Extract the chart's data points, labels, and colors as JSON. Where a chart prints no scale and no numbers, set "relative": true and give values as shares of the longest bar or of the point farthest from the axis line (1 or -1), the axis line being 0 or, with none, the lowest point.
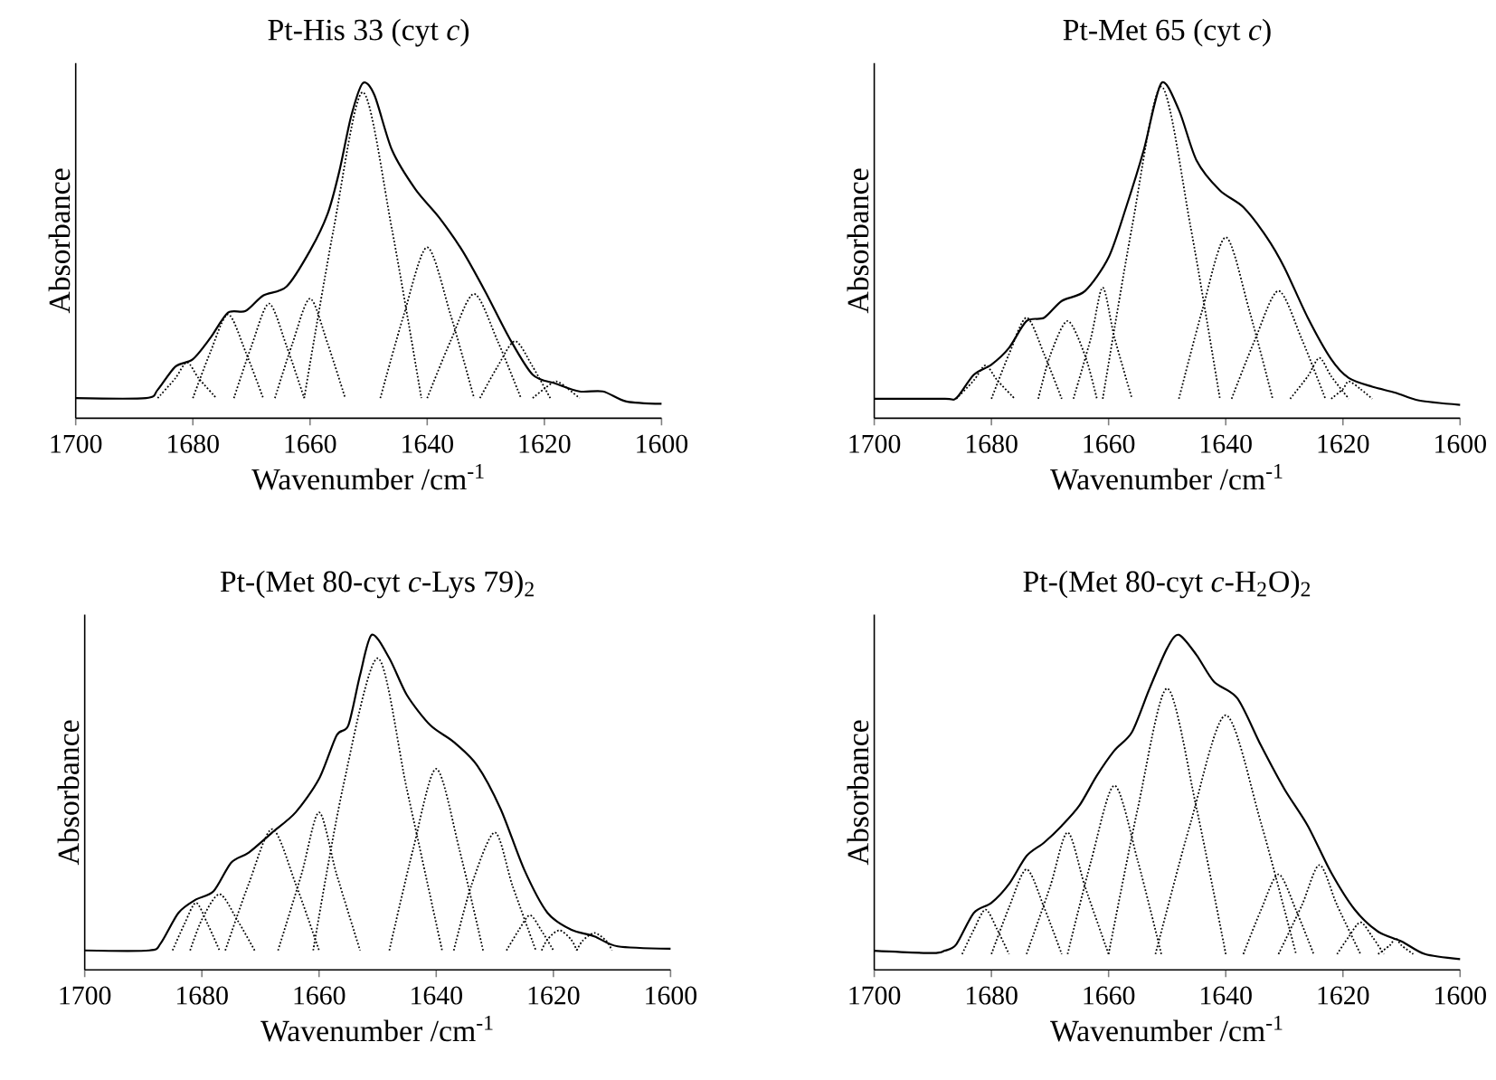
{
  "chart_data": [
    {
      "type": "line",
      "title": "Pt-His 33 (cyt *c*)",
      "xlabel": "Wavenumber /cm$^{-1}$",
      "ylabel": "Absorbance",
      "relative": true,
      "xlim": [
        1700,
        1600
      ],
      "xticks": [
        1700,
        1680,
        1660,
        1640,
        1620,
        1600
      ],
      "series": [
        {
          "color": "#000000",
          "line_style": "solid",
          "x": [
            1700,
            1688,
            1686,
            1683,
            1680,
            1677,
            1674,
            1671,
            1668,
            1664,
            1660,
            1657,
            1655,
            1653,
            1651,
            1649,
            1646,
            1642,
            1638,
            1634,
            1630,
            1626,
            1622,
            1618,
            1614,
            1610,
            1606,
            1600
          ],
          "values": [
            0.06,
            0.06,
            0.085,
            0.154,
            0.176,
            0.24,
            0.315,
            0.32,
            0.366,
            0.393,
            0.5,
            0.61,
            0.737,
            0.9,
            1.0,
            0.964,
            0.8,
            0.683,
            0.6,
            0.5,
            0.375,
            0.24,
            0.13,
            0.103,
            0.08,
            0.08,
            0.05,
            0.043
          ]
        },
        {
          "color": "#000000",
          "line_style": "dotted",
          "x": [
            1686,
            1683,
            1681,
            1679,
            1676
          ],
          "values": [
            0.06,
            0.119,
            0.167,
            0.119,
            0.06
          ]
        },
        {
          "color": "#000000",
          "line_style": "dotted",
          "x": [
            1680,
            1677,
            1674,
            1671,
            1668
          ],
          "values": [
            0.06,
            0.198,
            0.31,
            0.198,
            0.06
          ]
        },
        {
          "color": "#000000",
          "line_style": "dotted",
          "x": [
            1673,
            1670,
            1667,
            1664,
            1661
          ],
          "values": [
            0.06,
            0.215,
            0.342,
            0.215,
            0.06
          ]
        },
        {
          "color": "#000000",
          "line_style": "dotted",
          "x": [
            1666,
            1663,
            1660,
            1657,
            1654
          ],
          "values": [
            0.06,
            0.223,
            0.357,
            0.223,
            0.06
          ]
        },
        {
          "color": "#000000",
          "line_style": "dotted",
          "x": [
            1661,
            1656,
            1651,
            1646,
            1641
          ],
          "values": [
            0.06,
            0.562,
            0.973,
            0.562,
            0.06
          ]
        },
        {
          "color": "#000000",
          "line_style": "dotted",
          "x": [
            1648,
            1644,
            1640,
            1636,
            1632
          ],
          "values": [
            0.06,
            0.308,
            0.51,
            0.308,
            0.06
          ]
        },
        {
          "color": "#000000",
          "line_style": "dotted",
          "x": [
            1640,
            1636,
            1632,
            1628,
            1624
          ],
          "values": [
            0.06,
            0.231,
            0.371,
            0.231,
            0.06
          ]
        },
        {
          "color": "#000000",
          "line_style": "dotted",
          "x": [
            1631,
            1628,
            1625,
            1622,
            1619
          ],
          "values": [
            0.06,
            0.154,
            0.23,
            0.154,
            0.06
          ]
        },
        {
          "color": "#000000",
          "line_style": "dotted",
          "x": [
            1622,
            1620,
            1618,
            1616,
            1614
          ],
          "values": [
            0.06,
            0.088,
            0.11,
            0.088,
            0.06
          ]
        }
      ]
    },
    {
      "type": "line",
      "title": "Pt-Met 65 (cyt *c*)",
      "xlabel": "Wavenumber /cm$^{-1}$",
      "ylabel": "Absorbance",
      "relative": true,
      "xlim": [
        1700,
        1600
      ],
      "xticks": [
        1700,
        1680,
        1660,
        1640,
        1620,
        1600
      ],
      "series": [
        {
          "color": "#000000",
          "line_style": "solid",
          "x": [
            1700,
            1688,
            1686,
            1683,
            1680,
            1677,
            1674,
            1671,
            1668,
            1664,
            1660,
            1657,
            1654,
            1651,
            1648,
            1645,
            1641,
            1637,
            1633,
            1630,
            1626,
            1622,
            1619,
            1615,
            1611,
            1607,
            1600
          ],
          "values": [
            0.058,
            0.058,
            0.06,
            0.13,
            0.16,
            0.21,
            0.29,
            0.3,
            0.35,
            0.38,
            0.48,
            0.63,
            0.8,
            1.0,
            0.92,
            0.77,
            0.68,
            0.63,
            0.54,
            0.45,
            0.3,
            0.176,
            0.12,
            0.094,
            0.076,
            0.053,
            0.04
          ]
        },
        {
          "color": "#000000",
          "line_style": "dotted",
          "x": [
            1686,
            1683,
            1681,
            1679,
            1676
          ],
          "values": [
            0.058,
            0.113,
            0.158,
            0.113,
            0.058
          ]
        },
        {
          "color": "#000000",
          "line_style": "dotted",
          "x": [
            1680,
            1677,
            1674,
            1671,
            1668
          ],
          "values": [
            0.058,
            0.191,
            0.3,
            0.191,
            0.058
          ]
        },
        {
          "color": "#000000",
          "line_style": "dotted",
          "x": [
            1672,
            1670,
            1667,
            1664,
            1662
          ],
          "values": [
            0.058,
            0.186,
            0.29,
            0.186,
            0.058
          ]
        },
        {
          "color": "#000000",
          "line_style": "dotted",
          "x": [
            1666,
            1663,
            1661,
            1659,
            1656
          ],
          "values": [
            0.058,
            0.241,
            0.39,
            0.241,
            0.058
          ]
        },
        {
          "color": "#000000",
          "line_style": "dotted",
          "x": [
            1661,
            1656,
            1651,
            1646,
            1641
          ],
          "values": [
            0.058,
            0.571,
            0.99,
            0.571,
            0.058
          ]
        },
        {
          "color": "#000000",
          "line_style": "dotted",
          "x": [
            1648,
            1644,
            1640,
            1636,
            1632
          ],
          "values": [
            0.058,
            0.323,
            0.54,
            0.323,
            0.058
          ]
        },
        {
          "color": "#000000",
          "line_style": "dotted",
          "x": [
            1639,
            1635,
            1631,
            1627,
            1623
          ],
          "values": [
            0.058,
            0.235,
            0.38,
            0.235,
            0.058
          ]
        },
        {
          "color": "#000000",
          "line_style": "dotted",
          "x": [
            1629,
            1626,
            1624,
            1622,
            1619
          ],
          "values": [
            0.058,
            0.125,
            0.18,
            0.125,
            0.058
          ]
        },
        {
          "color": "#000000",
          "line_style": "dotted",
          "x": [
            1622,
            1620,
            1619,
            1617,
            1615
          ],
          "values": [
            0.058,
            0.087,
            0.11,
            0.087,
            0.058
          ]
        }
      ]
    },
    {
      "type": "line",
      "title": "Pt-(Met 80-cyt *c*-Lys 79)$_{2}$",
      "xlabel": "Wavenumber /cm$^{-1}$",
      "ylabel": "Absorbance",
      "relative": true,
      "xlim": [
        1700,
        1600
      ],
      "xticks": [
        1700,
        1680,
        1660,
        1640,
        1620,
        1600
      ],
      "series": [
        {
          "color": "#000000",
          "line_style": "solid",
          "x": [
            1700,
            1689,
            1687,
            1684,
            1681,
            1678,
            1675,
            1672,
            1668,
            1664,
            1660,
            1657,
            1655,
            1653,
            1651,
            1648,
            1645,
            1641,
            1637,
            1633,
            1629,
            1625,
            1621,
            1617,
            1613,
            1609,
            1600
          ],
          "values": [
            0.058,
            0.058,
            0.08,
            0.17,
            0.21,
            0.235,
            0.32,
            0.35,
            0.41,
            0.47,
            0.57,
            0.7,
            0.73,
            0.88,
            1.0,
            0.93,
            0.82,
            0.73,
            0.68,
            0.61,
            0.48,
            0.3,
            0.17,
            0.12,
            0.1,
            0.07,
            0.063
          ]
        },
        {
          "color": "#000000",
          "line_style": "dotted",
          "x": [
            1685,
            1683,
            1681,
            1679,
            1677
          ],
          "values": [
            0.058,
            0.136,
            0.2,
            0.136,
            0.058
          ]
        },
        {
          "color": "#000000",
          "line_style": "dotted",
          "x": [
            1682,
            1680,
            1677,
            1674,
            1671
          ],
          "values": [
            0.058,
            0.15,
            0.226,
            0.15,
            0.058
          ]
        },
        {
          "color": "#000000",
          "line_style": "dotted",
          "x": [
            1676,
            1672,
            1668,
            1664,
            1660
          ],
          "values": [
            0.058,
            0.257,
            0.42,
            0.257,
            0.058
          ]
        },
        {
          "color": "#000000",
          "line_style": "dotted",
          "x": [
            1667,
            1663,
            1660,
            1657,
            1653
          ],
          "values": [
            0.058,
            0.285,
            0.47,
            0.285,
            0.058
          ]
        },
        {
          "color": "#000000",
          "line_style": "dotted",
          "x": [
            1661,
            1656,
            1650,
            1645,
            1639
          ],
          "values": [
            0.058,
            0.538,
            0.93,
            0.538,
            0.058
          ]
        },
        {
          "color": "#000000",
          "line_style": "dotted",
          "x": [
            1648,
            1644,
            1640,
            1636,
            1632
          ],
          "values": [
            0.058,
            0.356,
            0.6,
            0.356,
            0.058
          ]
        },
        {
          "color": "#000000",
          "line_style": "dotted",
          "x": [
            1637,
            1634,
            1630,
            1627,
            1623
          ],
          "values": [
            0.058,
            0.252,
            0.41,
            0.252,
            0.058
          ]
        },
        {
          "color": "#000000",
          "line_style": "dotted",
          "x": [
            1628,
            1626,
            1624,
            1622,
            1620
          ],
          "values": [
            0.058,
            0.116,
            0.163,
            0.116,
            0.058
          ]
        },
        {
          "color": "#000000",
          "line_style": "dotted",
          "x": [
            1622,
            1621,
            1619,
            1617,
            1616
          ],
          "values": [
            0.058,
            0.091,
            0.118,
            0.091,
            0.058
          ]
        },
        {
          "color": "#000000",
          "line_style": "dotted",
          "x": [
            1616,
            1615,
            1613,
            1611,
            1610
          ],
          "values": [
            0.058,
            0.087,
            0.11,
            0.087,
            0.058
          ]
        }
      ]
    },
    {
      "type": "line",
      "title": "Pt-(Met 80-cyt *c*-H$_{2}$O)$_{2}$",
      "xlabel": "Wavenumber /cm$^{-1}$",
      "ylabel": "Absorbance",
      "relative": true,
      "xlim": [
        1700,
        1600
      ],
      "xticks": [
        1700,
        1680,
        1660,
        1640,
        1620,
        1600
      ],
      "series": [
        {
          "color": "#000000",
          "line_style": "solid",
          "x": [
            1700,
            1690,
            1688,
            1686,
            1683,
            1680,
            1677,
            1674,
            1671,
            1668,
            1665,
            1662,
            1659,
            1656,
            1653,
            1650,
            1648,
            1645,
            1642,
            1638,
            1634,
            1630,
            1626,
            1622,
            1618,
            1614,
            1610,
            1606,
            1600
          ],
          "values": [
            0.057,
            0.05,
            0.057,
            0.076,
            0.17,
            0.2,
            0.256,
            0.34,
            0.38,
            0.43,
            0.49,
            0.58,
            0.655,
            0.71,
            0.84,
            0.96,
            1.0,
            0.94,
            0.86,
            0.81,
            0.67,
            0.54,
            0.43,
            0.29,
            0.18,
            0.114,
            0.085,
            0.047,
            0.032
          ]
        },
        {
          "color": "#000000",
          "line_style": "dotted",
          "x": [
            1685,
            1683,
            1681,
            1679,
            1677
          ],
          "values": [
            0.047,
            0.12,
            0.18,
            0.12,
            0.047
          ]
        },
        {
          "color": "#000000",
          "line_style": "dotted",
          "x": [
            1680,
            1677,
            1674,
            1671,
            1668
          ],
          "values": [
            0.047,
            0.186,
            0.3,
            0.186,
            0.047
          ]
        },
        {
          "color": "#000000",
          "line_style": "dotted",
          "x": [
            1674,
            1670,
            1667,
            1664,
            1660
          ],
          "values": [
            0.047,
            0.247,
            0.41,
            0.247,
            0.047
          ]
        },
        {
          "color": "#000000",
          "line_style": "dotted",
          "x": [
            1667,
            1663,
            1659,
            1655,
            1651
          ],
          "values": [
            0.047,
            0.324,
            0.55,
            0.324,
            0.047
          ]
        },
        {
          "color": "#000000",
          "line_style": "dotted",
          "x": [
            1660,
            1655,
            1650,
            1645,
            1640
          ],
          "values": [
            0.047,
            0.483,
            0.84,
            0.483,
            0.047
          ]
        },
        {
          "color": "#000000",
          "line_style": "dotted",
          "x": [
            1652,
            1646,
            1640,
            1634,
            1628
          ],
          "values": [
            0.047,
            0.439,
            0.76,
            0.439,
            0.047
          ]
        },
        {
          "color": "#000000",
          "line_style": "dotted",
          "x": [
            1637,
            1634,
            1631,
            1628,
            1625
          ],
          "values": [
            0.047,
            0.178,
            0.285,
            0.178,
            0.047
          ]
        },
        {
          "color": "#000000",
          "line_style": "dotted",
          "x": [
            1631,
            1627,
            1624,
            1621,
            1617
          ],
          "values": [
            0.047,
            0.193,
            0.313,
            0.193,
            0.047
          ]
        },
        {
          "color": "#000000",
          "line_style": "dotted",
          "x": [
            1621,
            1619,
            1617,
            1615,
            1613
          ],
          "values": [
            0.047,
            0.099,
            0.142,
            0.099,
            0.047
          ]
        },
        {
          "color": "#000000",
          "line_style": "dotted",
          "x": [
            1614,
            1612,
            1611,
            1610,
            1608
          ],
          "values": [
            0.047,
            0.073,
            0.095,
            0.073,
            0.047
          ]
        }
      ]
    }
  ]
}
